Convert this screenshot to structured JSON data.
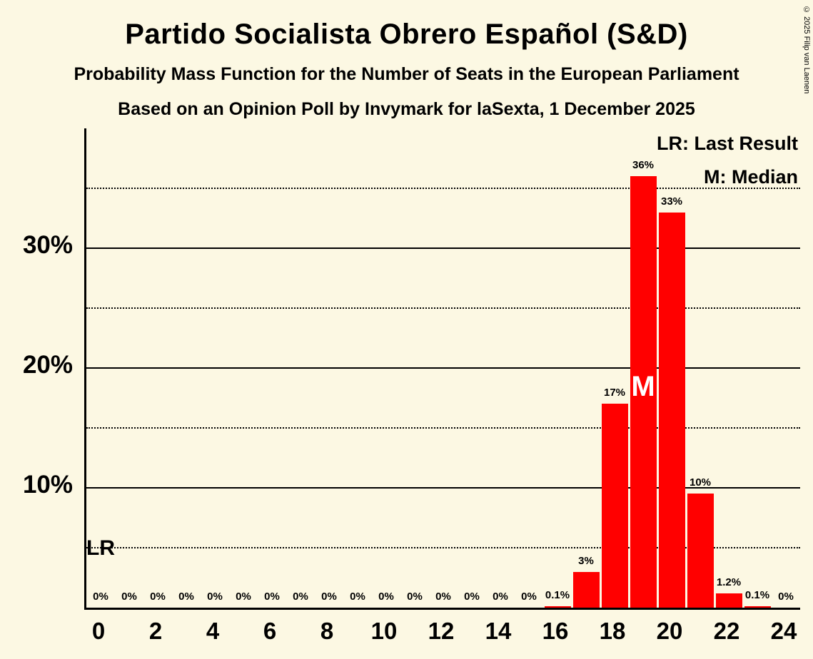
{
  "header": {
    "title": "Partido Socialista Obrero Español (S&D)",
    "subtitle": "Probability Mass Function for the Number of Seats in the European Parliament",
    "poll_line": "Based on an Opinion Poll by Invymark for laSexta, 1 December 2025"
  },
  "legend": {
    "lr": "LR: Last Result",
    "m": "M: Median"
  },
  "annotations": {
    "lr": "LR",
    "median": "M"
  },
  "copyright": "© 2025 Filip van Laenen",
  "colors": {
    "background": "#FCF8E3",
    "bar": "#FF0000",
    "text": "#000000",
    "median_text": "#FFFFFF"
  },
  "chart_data": {
    "type": "bar",
    "title": "Partido Socialista Obrero Español (S&D)",
    "x": [
      0,
      1,
      2,
      3,
      4,
      5,
      6,
      7,
      8,
      9,
      10,
      11,
      12,
      13,
      14,
      15,
      16,
      17,
      18,
      19,
      20,
      21,
      22,
      23,
      24
    ],
    "values": [
      0,
      0,
      0,
      0,
      0,
      0,
      0,
      0,
      0,
      0,
      0,
      0,
      0,
      0,
      0,
      0,
      0.1,
      3,
      17,
      36,
      33,
      9.5,
      1.2,
      0.1,
      0
    ],
    "bar_labels": [
      "0%",
      "0%",
      "0%",
      "0%",
      "0%",
      "0%",
      "0%",
      "0%",
      "0%",
      "0%",
      "0%",
      "0%",
      "0%",
      "0%",
      "0%",
      "0%",
      "0.1%",
      "3%",
      "17%",
      "36%",
      "33%",
      "10%",
      "1.2%",
      "0.1%",
      "0%"
    ],
    "x_ticks": [
      0,
      2,
      4,
      6,
      8,
      10,
      12,
      14,
      16,
      18,
      20,
      22,
      24
    ],
    "y_ticks": [
      {
        "value": 10,
        "label": "10%"
      },
      {
        "value": 20,
        "label": "20%"
      },
      {
        "value": 30,
        "label": "30%"
      }
    ],
    "y_dotted_gridlines": [
      5,
      15,
      25,
      35
    ],
    "ylim": [
      0,
      40
    ],
    "median_seat": 19,
    "grid": "horizontal",
    "legend_position": "top-right"
  }
}
